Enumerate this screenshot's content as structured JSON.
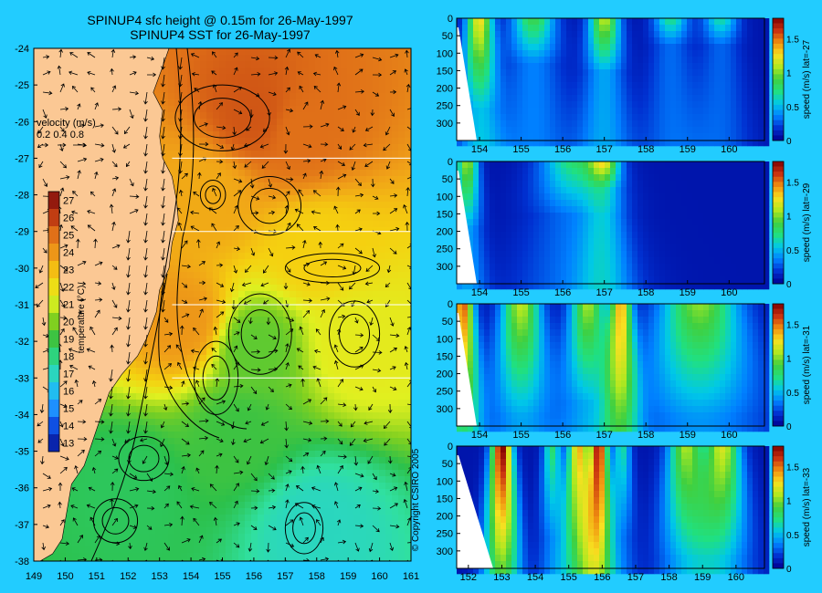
{
  "titles": {
    "line1": "SPINUP4 sfc height @ 0.15m for 26-May-1997",
    "line2": "SPINUP4 SST for 26-May-1997"
  },
  "copyright": "© Copyright CSIRO 2005",
  "velocity_legend": {
    "title": "velocity (m/s)",
    "values_text": "0.2 0.4 0.8",
    "values": [
      0.2,
      0.4,
      0.8
    ]
  },
  "colors": {
    "background": "#22ccff",
    "land": "#fbc894",
    "ramp": [
      "#08128c",
      "#0b40dc",
      "#1e90ff",
      "#22c8ec",
      "#30e0a0",
      "#2cc04a",
      "#80d020",
      "#e0f020",
      "#f5d010",
      "#f0a018",
      "#e07018",
      "#b83010",
      "#7a0c0c"
    ]
  },
  "chart_data": [
    {
      "type": "heatmap",
      "name_hint": "sst-map",
      "title": "SPINUP4 SST for 26-May-1997",
      "xlim": [
        149,
        161
      ],
      "ylim": [
        -38,
        -24
      ],
      "x_ticks": [
        "149",
        "150",
        "151",
        "152",
        "153",
        "154",
        "155",
        "156",
        "157",
        "158",
        "159",
        "160",
        "161"
      ],
      "y_ticks": [
        "-24",
        "-25",
        "-26",
        "-27",
        "-28",
        "-29",
        "-30",
        "-31",
        "-32",
        "-33",
        "-34",
        "-35",
        "-36",
        "-37",
        "-38"
      ],
      "highlighted_latitudes": [
        -27,
        -29,
        -31,
        -33
      ],
      "grid": false,
      "colorbar": {
        "label": "temperature (°C)",
        "min": 12.5,
        "max": 27.5,
        "ticks": [
          "27",
          "26",
          "25",
          "24",
          "23",
          "22",
          "21",
          "20",
          "19",
          "18",
          "17",
          "16",
          "15",
          "14",
          "13"
        ]
      },
      "sst_regions": [
        {
          "lon": 156.0,
          "lat": -25.8,
          "value": 25.5
        },
        {
          "lon": 157.5,
          "lat": -26.3,
          "value": 25.0
        },
        {
          "lon": 154.5,
          "lat": -28.0,
          "value": 23.5
        },
        {
          "lon": 158.0,
          "lat": -29.5,
          "value": 22.5
        },
        {
          "lon": 153.8,
          "lat": -31.5,
          "value": 24.0
        },
        {
          "lon": 156.0,
          "lat": -32.2,
          "value": 19.5
        },
        {
          "lon": 159.3,
          "lat": -32.0,
          "value": 21.5
        },
        {
          "lon": 155.5,
          "lat": -34.5,
          "value": 19.0
        },
        {
          "lon": 152.0,
          "lat": -36.0,
          "value": 18.5
        },
        {
          "lon": 158.0,
          "lat": -37.0,
          "value": 17.0
        }
      ]
    },
    {
      "type": "heatmap",
      "name_hint": "section-lat-27",
      "colorbar_label": "speed (m/s) lat=-27",
      "xlim": [
        153.45,
        160.85
      ],
      "x_ticks": [
        "154",
        "155",
        "156",
        "157",
        "158",
        "159",
        "160"
      ],
      "y_ticks": [
        "0",
        "50",
        "100",
        "150",
        "200",
        "250",
        "300"
      ],
      "ylim": [
        350,
        0
      ],
      "zlim": [
        0,
        1.8
      ],
      "colorbar_ticks": [
        "1.5",
        "1",
        "0.5",
        "0"
      ],
      "jets": [
        {
          "lon": 154.0,
          "width": 0.3,
          "peak": 1.2,
          "depth": 200
        },
        {
          "lon": 155.3,
          "width": 0.5,
          "peak": 0.8,
          "depth": 100
        },
        {
          "lon": 157.0,
          "width": 0.35,
          "peak": 1.05,
          "depth": 120
        },
        {
          "lon": 158.6,
          "width": 0.4,
          "peak": 0.65,
          "depth": 60
        },
        {
          "lon": 159.8,
          "width": 0.4,
          "peak": 0.6,
          "depth": 60
        }
      ]
    },
    {
      "type": "heatmap",
      "name_hint": "section-lat-29",
      "colorbar_label": "speed (m/s) lat=-29",
      "xlim": [
        153.45,
        160.85
      ],
      "x_ticks": [
        "154",
        "155",
        "156",
        "157",
        "158",
        "159",
        "160"
      ],
      "y_ticks": [
        "0",
        "50",
        "100",
        "150",
        "200",
        "250",
        "300"
      ],
      "ylim": [
        350,
        0
      ],
      "zlim": [
        0,
        1.8
      ],
      "colorbar_ticks": [
        "1.5",
        "1",
        "0.5",
        "0"
      ],
      "jets": [
        {
          "lon": 153.7,
          "width": 0.25,
          "peak": 1.0,
          "depth": 150
        },
        {
          "lon": 156.3,
          "width": 0.8,
          "peak": 0.7,
          "depth": 120
        },
        {
          "lon": 157.0,
          "width": 0.35,
          "peak": 0.9,
          "depth": 60
        }
      ]
    },
    {
      "type": "heatmap",
      "name_hint": "section-lat-31",
      "colorbar_label": "speed (m/s) lat=-31",
      "xlim": [
        153.45,
        160.85
      ],
      "x_ticks": [
        "154",
        "155",
        "156",
        "157",
        "158",
        "159",
        "160"
      ],
      "y_ticks": [
        "0",
        "50",
        "100",
        "150",
        "200",
        "250",
        "300"
      ],
      "ylim": [
        350,
        0
      ],
      "zlim": [
        0,
        1.8
      ],
      "colorbar_ticks": [
        "1.5",
        "1",
        "0.5",
        "0"
      ],
      "jets": [
        {
          "lon": 153.6,
          "width": 0.25,
          "peak": 1.5,
          "depth": 320
        },
        {
          "lon": 155.0,
          "width": 0.45,
          "peak": 1.05,
          "depth": 250
        },
        {
          "lon": 156.6,
          "width": 0.4,
          "peak": 1.0,
          "depth": 220
        },
        {
          "lon": 157.4,
          "width": 0.25,
          "peak": 1.3,
          "depth": 330
        },
        {
          "lon": 159.3,
          "width": 0.9,
          "peak": 0.95,
          "depth": 250
        }
      ]
    },
    {
      "type": "heatmap",
      "name_hint": "section-lat-33",
      "colorbar_label": "speed (m/s) lat=-33",
      "xlim": [
        151.65,
        160.85
      ],
      "x_ticks": [
        "152",
        "153",
        "154",
        "155",
        "156",
        "157",
        "158",
        "159",
        "160"
      ],
      "y_ticks": [
        "0",
        "50",
        "100",
        "150",
        "200",
        "250",
        "300"
      ],
      "ylim": [
        350,
        0
      ],
      "zlim": [
        0,
        1.8
      ],
      "colorbar_ticks": [
        "1.5",
        "1",
        "0.5",
        "0"
      ],
      "jets": [
        {
          "lon": 153.0,
          "width": 0.3,
          "peak": 1.75,
          "depth": 350
        },
        {
          "lon": 154.5,
          "width": 0.25,
          "peak": 0.7,
          "depth": 200
        },
        {
          "lon": 155.3,
          "width": 0.3,
          "peak": 1.3,
          "depth": 350
        },
        {
          "lon": 155.9,
          "width": 0.25,
          "peak": 1.65,
          "depth": 350
        },
        {
          "lon": 156.6,
          "width": 0.25,
          "peak": 0.6,
          "depth": 200
        },
        {
          "lon": 158.5,
          "width": 0.5,
          "peak": 1.0,
          "depth": 250
        },
        {
          "lon": 159.6,
          "width": 0.5,
          "peak": 1.1,
          "depth": 250
        }
      ]
    }
  ]
}
